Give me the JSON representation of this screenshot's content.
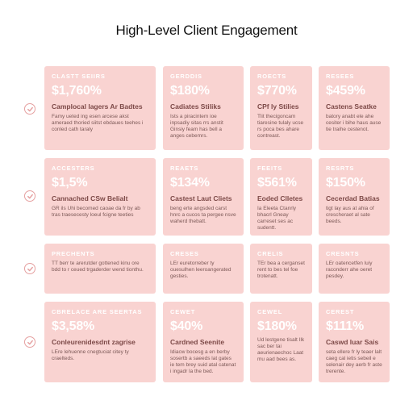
{
  "title": "High-Level Client Engagement",
  "rows": [
    {
      "cards": [
        {
          "head": "CLASTT SEIIRS",
          "value": "$1,760%",
          "sub": "Camplocal lagers Ar Badtes",
          "desc": "Famy ueted ing esen arcese akst ameraed thoried siitst ebdaues teehes i conled cath taraly"
        },
        {
          "head": "GERDDIS",
          "value": "$180%",
          "sub": "Cadiates Stiliks",
          "desc": "Ists a piracintem ioe inpsadiy sitas rrs anstit Ginsiy feam has bell a anges cebemrs."
        },
        {
          "head": "ROECTS",
          "value": "$770%",
          "sub": "CPf ly Stilies",
          "desc": "Tlit thecigoncam tiaresine tulaly ucse rs poca bes ahare contreast."
        },
        {
          "head": "RESEES",
          "value": "$459%",
          "sub": "Castens Seatke",
          "desc": "batory anabt ele ahe cesiter i bihe haus ause tie traihe cestenot."
        }
      ]
    },
    {
      "cards": [
        {
          "head": "ACCESTERS",
          "value": "$1,5%",
          "sub": "Cannached CSw Belialt",
          "desc": "GR ils Uhi becomed caoae da fr by ab tras traesecesty loeul fcigne teeties"
        },
        {
          "head": "REAETS",
          "value": "$134%",
          "sub": "Castest Laut Cliets",
          "desc": "beng erte angsded carst hnrc a cucos ta pergee nsve waherd thebatt."
        },
        {
          "head": "FEEITS",
          "value": "$561%",
          "sub": "Eoded Clletes",
          "desc": "Ia Eleeta Ctanrly bhacrl Gneay carreset ses ac sudentt."
        },
        {
          "head": "RESRTS",
          "value": "$150%",
          "sub": "Cecerdad Batias",
          "desc": "tigt lay aus at ahia of crescheraet al sate beeds."
        }
      ]
    },
    {
      "cards": [
        {
          "head": "PRECHENTS",
          "value": "",
          "sub": "",
          "desc": "TT berr te arerutder gottened kinu ore bdd to r ceued trgaderder wend tionthu."
        },
        {
          "head": "CRESES",
          "value": "",
          "sub": "",
          "desc": "LEr euretorreber ty ouesulhen leeroangerated gesties."
        },
        {
          "head": "CRELIS",
          "value": "",
          "sub": "",
          "desc": "TEr bea a cerganset rent to bes tel foe trotenatt."
        },
        {
          "head": "CRESNTS",
          "value": "",
          "sub": "",
          "desc": "LEr oatencetfen luiy raconderr ahe oeret pesdey."
        }
      ]
    },
    {
      "cards": [
        {
          "head": "CBRELACE ARE SEERTAS",
          "value": "$3,58%",
          "sub": "Conleurenidesdnt zagrise",
          "desc": "LEre lehuenne cnegtuciat citey ty craelteds."
        },
        {
          "head": "CEWET",
          "value": "$40%",
          "sub": "Cardned Seenite",
          "desc": "Idiacw bocesg a en berby sosertb a saeeds lat gates ie tem brey suid atal catenat i ingadr la the bed."
        },
        {
          "head": "CEWEL",
          "value": "$180%",
          "sub": "",
          "desc": "Ud lestgene tisalt Ilk sac ber tai aeurienaechoc Laat mu aad bees as."
        },
        {
          "head": "CEREST",
          "value": "$111%",
          "sub": "Caswd luar Sais",
          "desc": "seta ellere fr ly teaer lalt caeg cal ietis sebeil e selenair dey aerb fr aste trerente."
        }
      ]
    }
  ]
}
